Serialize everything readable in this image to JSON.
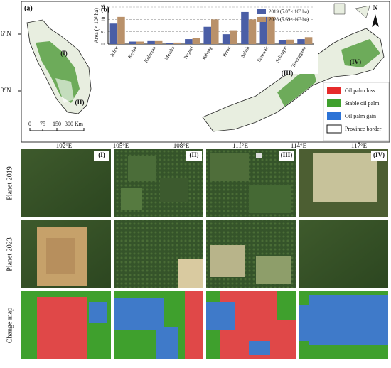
{
  "map": {
    "label": "(a)",
    "lat_labels": [
      "6°N",
      "3°N"
    ],
    "lon_labels": [
      "102°E",
      "105°E",
      "108°E",
      "111°E",
      "114°E",
      "117°E"
    ],
    "regions": [
      "(I)",
      "(II)",
      "(III)",
      "(IV)"
    ],
    "scale_labels": [
      "0",
      "75",
      "150",
      "300 Km"
    ],
    "north": "N",
    "legend": [
      "Oil palm loss",
      "Stable oil palm",
      "Oil palm gain",
      "Province border"
    ]
  },
  "chart_data": {
    "type": "bar",
    "label": "(b)",
    "ylabel": "Area (× 10⁵ ha)",
    "categories": [
      "Johor",
      "Kedah",
      "Kelantan",
      "Melaka",
      "Negeri",
      "Pahang",
      "Perak",
      "Sabah",
      "Sarawak",
      "Selangor",
      "Terengganu"
    ],
    "series": [
      {
        "name": "2019 (5.07× 10⁷ ha)",
        "color": "#4a5ea6",
        "values": [
          8.3,
          1.0,
          1.2,
          0.5,
          2.0,
          7.0,
          4.0,
          13.0,
          11.0,
          1.5,
          2.0
        ]
      },
      {
        "name": "2023 (5.69× 10⁷ ha)",
        "color": "#b9916a",
        "values": [
          11.0,
          1.0,
          1.2,
          0.6,
          2.4,
          10.0,
          5.6,
          10.0,
          11.0,
          1.8,
          2.8
        ]
      }
    ],
    "ylim": [
      0,
      15
    ],
    "yticks": [
      0,
      5,
      10,
      15
    ],
    "grid": true
  },
  "panels": {
    "rows": [
      "Planet 2019",
      "Planet 2023",
      "Change map"
    ],
    "columns": [
      "(I)",
      "(II)",
      "(III)",
      "(IV)"
    ]
  }
}
